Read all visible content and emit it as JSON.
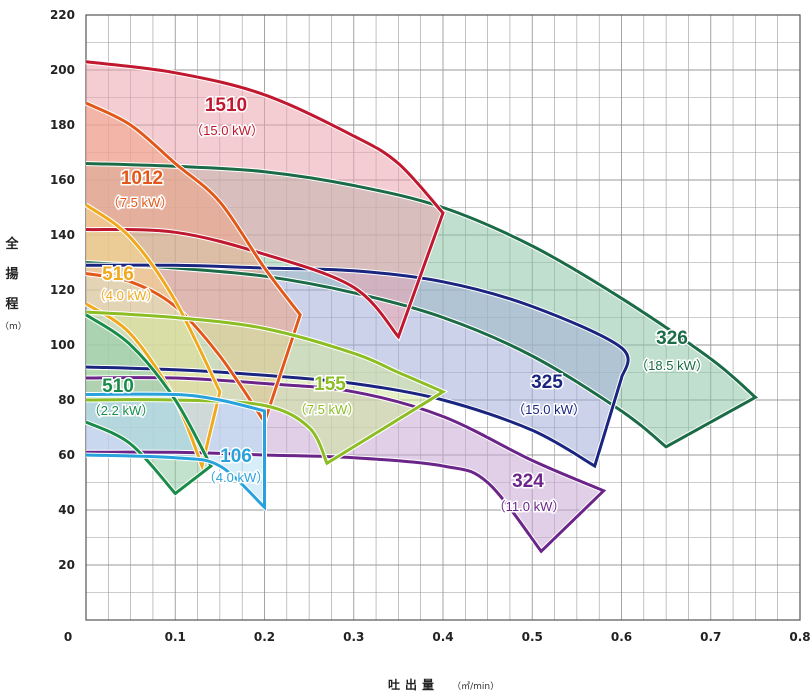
{
  "chart_data": {
    "type": "line",
    "ylabel": "全揚程",
    "ylabel_unit": "（m）",
    "xlabel": "吐出量",
    "xlabel_unit": "（㎥/min）",
    "xlim": [
      0,
      0.8
    ],
    "ylim": [
      0,
      220
    ],
    "x_ticks": [
      "0",
      "0.1",
      "0.2",
      "0.3",
      "0.4",
      "0.5",
      "0.6",
      "0.7",
      "0.8"
    ],
    "y_ticks": [
      "20",
      "40",
      "60",
      "80",
      "100",
      "120",
      "140",
      "160",
      "180",
      "200",
      "220"
    ],
    "grid": true,
    "series": [
      {
        "name": "326",
        "power": "（18.5 kW）",
        "color": "#1b6b47",
        "fill": "#8cc4a6",
        "upper": [
          [
            0.0,
            166
          ],
          [
            0.1,
            165
          ],
          [
            0.2,
            163
          ],
          [
            0.3,
            158
          ],
          [
            0.4,
            150
          ],
          [
            0.5,
            136
          ],
          [
            0.6,
            117
          ],
          [
            0.7,
            95
          ],
          [
            0.75,
            81
          ]
        ],
        "lower": [
          [
            0.0,
            130
          ],
          [
            0.1,
            128
          ],
          [
            0.2,
            125
          ],
          [
            0.3,
            119
          ],
          [
            0.4,
            110
          ],
          [
            0.5,
            96
          ],
          [
            0.6,
            76
          ],
          [
            0.65,
            63
          ]
        ]
      },
      {
        "name": "325",
        "power": "（15.0 kW）",
        "color": "#1a2580",
        "fill": "#a3add8",
        "upper": [
          [
            0.0,
            129
          ],
          [
            0.1,
            129
          ],
          [
            0.2,
            128
          ],
          [
            0.3,
            127
          ],
          [
            0.4,
            123
          ],
          [
            0.5,
            114
          ],
          [
            0.6,
            99
          ],
          [
            0.6,
            88
          ]
        ],
        "lower": [
          [
            0.0,
            92
          ],
          [
            0.1,
            91
          ],
          [
            0.2,
            89
          ],
          [
            0.3,
            86
          ],
          [
            0.4,
            80
          ],
          [
            0.5,
            69
          ],
          [
            0.57,
            56
          ]
        ]
      },
      {
        "name": "324",
        "power": "（11.0 kW）",
        "color": "#6b2589",
        "fill": "#c9a8d6",
        "upper": [
          [
            0.0,
            88
          ],
          [
            0.1,
            88
          ],
          [
            0.2,
            86
          ],
          [
            0.3,
            83
          ],
          [
            0.4,
            74
          ],
          [
            0.5,
            58
          ],
          [
            0.58,
            47
          ]
        ],
        "lower": [
          [
            0.0,
            61
          ],
          [
            0.1,
            61
          ],
          [
            0.2,
            60
          ],
          [
            0.3,
            59
          ],
          [
            0.4,
            56
          ],
          [
            0.45,
            50
          ],
          [
            0.51,
            25
          ]
        ]
      },
      {
        "name": "1510",
        "power": "（15.0 kW）",
        "color": "#c0182f",
        "fill": "#eba4af",
        "upper": [
          [
            0.0,
            203
          ],
          [
            0.1,
            199
          ],
          [
            0.2,
            191
          ],
          [
            0.3,
            176
          ],
          [
            0.35,
            166
          ],
          [
            0.4,
            148
          ]
        ],
        "lower": [
          [
            0.0,
            142
          ],
          [
            0.1,
            141
          ],
          [
            0.2,
            133
          ],
          [
            0.3,
            121
          ],
          [
            0.35,
            103
          ]
        ]
      },
      {
        "name": "1012",
        "power": "（7.5 kW）",
        "color": "#e2581a",
        "fill": "#f0a383",
        "upper": [
          [
            0.0,
            188
          ],
          [
            0.05,
            180
          ],
          [
            0.1,
            166
          ],
          [
            0.15,
            152
          ],
          [
            0.2,
            128
          ],
          [
            0.24,
            111
          ]
        ],
        "lower": [
          [
            0.0,
            126
          ],
          [
            0.05,
            123
          ],
          [
            0.1,
            114
          ],
          [
            0.15,
            96
          ],
          [
            0.2,
            72
          ]
        ]
      },
      {
        "name": "516",
        "power": "（4.0 kW）",
        "color": "#f0a91c",
        "fill": "#f8d58a",
        "upper": [
          [
            0.0,
            151
          ],
          [
            0.05,
            139
          ],
          [
            0.1,
            116
          ],
          [
            0.15,
            83
          ]
        ],
        "lower": [
          [
            0.0,
            115
          ],
          [
            0.05,
            104
          ],
          [
            0.1,
            80
          ],
          [
            0.13,
            56
          ]
        ]
      },
      {
        "name": "155",
        "power": "（7.5 kW）",
        "color": "#8cbd24",
        "fill": "#cfe69a",
        "upper": [
          [
            0.0,
            112
          ],
          [
            0.1,
            110
          ],
          [
            0.2,
            106
          ],
          [
            0.3,
            97
          ],
          [
            0.35,
            90
          ],
          [
            0.4,
            83
          ]
        ],
        "lower": [
          [
            0.0,
            80
          ],
          [
            0.1,
            80
          ],
          [
            0.2,
            78
          ],
          [
            0.25,
            70
          ],
          [
            0.27,
            57
          ]
        ]
      },
      {
        "name": "510",
        "power": "（2.2 kW）",
        "color": "#1a8c4a",
        "fill": "#8fcaa6",
        "upper": [
          [
            0.0,
            111
          ],
          [
            0.05,
            100
          ],
          [
            0.1,
            80
          ],
          [
            0.14,
            56
          ]
        ],
        "lower": [
          [
            0.0,
            72
          ],
          [
            0.05,
            64
          ],
          [
            0.1,
            46
          ]
        ]
      },
      {
        "name": "106",
        "power": "（4.0 kW）",
        "color": "#27a2dc",
        "fill": "#b7e0f4",
        "upper": [
          [
            0.0,
            82
          ],
          [
            0.1,
            82
          ],
          [
            0.15,
            80
          ],
          [
            0.2,
            76
          ]
        ],
        "lower": [
          [
            0.0,
            60
          ],
          [
            0.1,
            59
          ],
          [
            0.15,
            56
          ],
          [
            0.2,
            41
          ]
        ]
      }
    ]
  }
}
